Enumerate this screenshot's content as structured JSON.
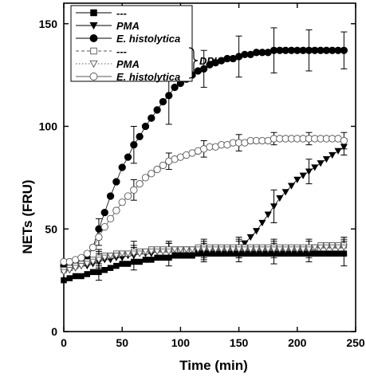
{
  "chart_data": {
    "type": "scatter",
    "title": "",
    "xlabel": "Time (min)",
    "ylabel": "NETs (FRU)",
    "xlim": [
      0,
      250
    ],
    "ylim": [
      0,
      160
    ],
    "xticks": [
      0,
      50,
      100,
      150,
      200,
      250
    ],
    "yticks": [
      0,
      50,
      100,
      150
    ],
    "grid": false,
    "legend_position": "top-left",
    "legend_group_label": "DPI",
    "series": [
      {
        "name": "---",
        "marker": "square",
        "filled": true,
        "line": "solid",
        "color": "#000000",
        "x": [
          0,
          5,
          10,
          15,
          20,
          25,
          30,
          35,
          40,
          45,
          50,
          55,
          60,
          65,
          70,
          75,
          80,
          85,
          90,
          95,
          100,
          105,
          110,
          115,
          120,
          125,
          130,
          135,
          140,
          145,
          150,
          155,
          160,
          165,
          170,
          175,
          180,
          185,
          190,
          195,
          200,
          205,
          210,
          215,
          220,
          225,
          230,
          235,
          240
        ],
        "y": [
          25,
          26,
          27,
          27,
          28,
          29,
          29,
          30,
          31,
          32,
          33,
          33,
          34,
          34,
          35,
          35,
          36,
          36,
          36,
          37,
          37,
          37,
          37,
          38,
          38,
          38,
          38,
          38,
          38,
          38,
          38,
          38,
          38,
          38,
          38,
          38,
          38,
          38,
          38,
          38,
          38,
          38,
          38,
          38,
          38,
          38,
          38,
          38,
          38
        ],
        "errors": [
          {
            "x": 30,
            "e": 4
          },
          {
            "x": 60,
            "e": 4
          },
          {
            "x": 90,
            "e": 4
          },
          {
            "x": 120,
            "e": 4
          },
          {
            "x": 150,
            "e": 4
          },
          {
            "x": 180,
            "e": 5
          },
          {
            "x": 210,
            "e": 4
          },
          {
            "x": 240,
            "e": 6
          }
        ]
      },
      {
        "name": "PMA",
        "marker": "triangle-down",
        "filled": true,
        "line": "solid",
        "color": "#000000",
        "x": [
          0,
          5,
          10,
          15,
          20,
          25,
          30,
          35,
          40,
          45,
          50,
          55,
          60,
          65,
          70,
          75,
          80,
          85,
          90,
          95,
          100,
          105,
          110,
          115,
          120,
          125,
          130,
          135,
          140,
          145,
          150,
          155,
          160,
          165,
          170,
          175,
          180,
          185,
          190,
          195,
          200,
          205,
          210,
          215,
          220,
          225,
          230,
          235,
          240
        ],
        "y": [
          29,
          30,
          31,
          32,
          32,
          33,
          34,
          35,
          35,
          36,
          36,
          37,
          37,
          38,
          38,
          38,
          39,
          39,
          39,
          39,
          39,
          39,
          39,
          39,
          39,
          40,
          40,
          40,
          40,
          40,
          41,
          43,
          46,
          49,
          53,
          57,
          61,
          65,
          68,
          71,
          74,
          76,
          78,
          80,
          82,
          84,
          86,
          88,
          90
        ],
        "errors": [
          {
            "x": 30,
            "e": 4
          },
          {
            "x": 60,
            "e": 4
          },
          {
            "x": 90,
            "e": 4
          },
          {
            "x": 120,
            "e": 4
          },
          {
            "x": 150,
            "e": 5
          },
          {
            "x": 180,
            "e": 8
          },
          {
            "x": 210,
            "e": 6
          },
          {
            "x": 240,
            "e": 4
          }
        ]
      },
      {
        "name": "E. histolytica",
        "marker": "circle",
        "filled": true,
        "line": "solid",
        "color": "#000000",
        "x": [
          0,
          5,
          10,
          15,
          20,
          25,
          30,
          35,
          40,
          45,
          50,
          55,
          60,
          65,
          70,
          75,
          80,
          85,
          90,
          95,
          100,
          105,
          110,
          115,
          120,
          125,
          130,
          135,
          140,
          145,
          150,
          155,
          160,
          165,
          170,
          175,
          180,
          185,
          190,
          195,
          200,
          205,
          210,
          215,
          220,
          225,
          230,
          235,
          240
        ],
        "y": [
          32,
          32,
          33,
          34,
          36,
          41,
          50,
          58,
          66,
          73,
          80,
          85,
          91,
          95,
          100,
          104,
          108,
          112,
          115,
          119,
          121,
          123,
          125,
          127,
          128,
          130,
          131,
          132,
          133,
          133,
          134,
          135,
          135,
          136,
          136,
          136,
          137,
          137,
          137,
          137,
          137,
          137,
          137,
          137,
          137,
          137,
          137,
          137,
          137
        ],
        "errors": [
          {
            "x": 30,
            "e": 5
          },
          {
            "x": 60,
            "e": 9
          },
          {
            "x": 90,
            "e": 14
          },
          {
            "x": 120,
            "e": 9
          },
          {
            "x": 150,
            "e": 10
          },
          {
            "x": 180,
            "e": 11
          },
          {
            "x": 210,
            "e": 10
          },
          {
            "x": 240,
            "e": 9
          }
        ]
      },
      {
        "name": "---",
        "marker": "square",
        "filled": false,
        "line": "dashed",
        "color": "#555555",
        "x": [
          0,
          5,
          10,
          15,
          20,
          25,
          30,
          35,
          40,
          45,
          50,
          55,
          60,
          65,
          70,
          75,
          80,
          85,
          90,
          95,
          100,
          105,
          110,
          115,
          120,
          125,
          130,
          135,
          140,
          145,
          150,
          155,
          160,
          165,
          170,
          175,
          180,
          185,
          190,
          195,
          200,
          205,
          210,
          215,
          220,
          225,
          230,
          235,
          240
        ],
        "y": [
          30,
          31,
          32,
          33,
          34,
          35,
          36,
          37,
          37,
          38,
          38,
          38,
          39,
          39,
          39,
          40,
          40,
          40,
          40,
          40,
          40,
          40,
          40,
          41,
          41,
          41,
          41,
          41,
          41,
          41,
          41,
          41,
          41,
          41,
          41,
          41,
          41,
          41,
          41,
          41,
          41,
          41,
          41,
          41,
          42,
          42,
          42,
          42,
          42
        ],
        "errors": [
          {
            "x": 30,
            "e": 4
          },
          {
            "x": 60,
            "e": 5
          },
          {
            "x": 90,
            "e": 4
          },
          {
            "x": 120,
            "e": 4
          },
          {
            "x": 150,
            "e": 4
          },
          {
            "x": 180,
            "e": 4
          },
          {
            "x": 210,
            "e": 4
          },
          {
            "x": 240,
            "e": 4
          }
        ]
      },
      {
        "name": "PMA",
        "marker": "triangle-down",
        "filled": false,
        "line": "dotted",
        "color": "#555555",
        "x": [
          0,
          5,
          10,
          15,
          20,
          25,
          30,
          35,
          40,
          45,
          50,
          55,
          60,
          65,
          70,
          75,
          80,
          85,
          90,
          95,
          100,
          105,
          110,
          115,
          120,
          125,
          130,
          135,
          140,
          145,
          150,
          155,
          160,
          165,
          170,
          175,
          180,
          185,
          190,
          195,
          200,
          205,
          210,
          215,
          220,
          225,
          230,
          235,
          240
        ],
        "y": [
          29,
          30,
          31,
          32,
          33,
          34,
          35,
          36,
          37,
          37,
          38,
          38,
          38,
          38,
          39,
          39,
          39,
          39,
          39,
          40,
          40,
          40,
          40,
          40,
          40,
          40,
          40,
          40,
          40,
          40,
          40,
          40,
          40,
          40,
          40,
          40,
          40,
          40,
          40,
          40,
          40,
          40,
          40,
          41,
          41,
          41,
          41,
          41,
          41
        ],
        "errors": [
          {
            "x": 30,
            "e": 4
          },
          {
            "x": 60,
            "e": 4
          },
          {
            "x": 90,
            "e": 4
          },
          {
            "x": 120,
            "e": 4
          },
          {
            "x": 150,
            "e": 4
          },
          {
            "x": 180,
            "e": 4
          },
          {
            "x": 210,
            "e": 4
          },
          {
            "x": 240,
            "e": 4
          }
        ]
      },
      {
        "name": "E. histolytica",
        "marker": "circle",
        "filled": false,
        "line": "solid",
        "color": "#555555",
        "x": [
          0,
          5,
          10,
          15,
          20,
          25,
          30,
          35,
          40,
          45,
          50,
          55,
          60,
          65,
          70,
          75,
          80,
          85,
          90,
          95,
          100,
          105,
          110,
          115,
          120,
          125,
          130,
          135,
          140,
          145,
          150,
          155,
          160,
          165,
          170,
          175,
          180,
          185,
          190,
          195,
          200,
          205,
          210,
          215,
          220,
          225,
          230,
          235,
          240
        ],
        "y": [
          34,
          34,
          35,
          36,
          38,
          41,
          46,
          51,
          55,
          59,
          63,
          66,
          69,
          72,
          75,
          77,
          79,
          81,
          83,
          84,
          85,
          86,
          87,
          88,
          89,
          90,
          90,
          91,
          91,
          92,
          92,
          92,
          93,
          93,
          93,
          93,
          94,
          94,
          94,
          94,
          94,
          94,
          94,
          94,
          94,
          94,
          94,
          94,
          93
        ],
        "errors": [
          {
            "x": 30,
            "e": 4
          },
          {
            "x": 60,
            "e": 5
          },
          {
            "x": 90,
            "e": 4
          },
          {
            "x": 120,
            "e": 4
          },
          {
            "x": 150,
            "e": 4
          },
          {
            "x": 180,
            "e": 3
          },
          {
            "x": 210,
            "e": 3
          },
          {
            "x": 240,
            "e": 4
          }
        ]
      }
    ]
  }
}
